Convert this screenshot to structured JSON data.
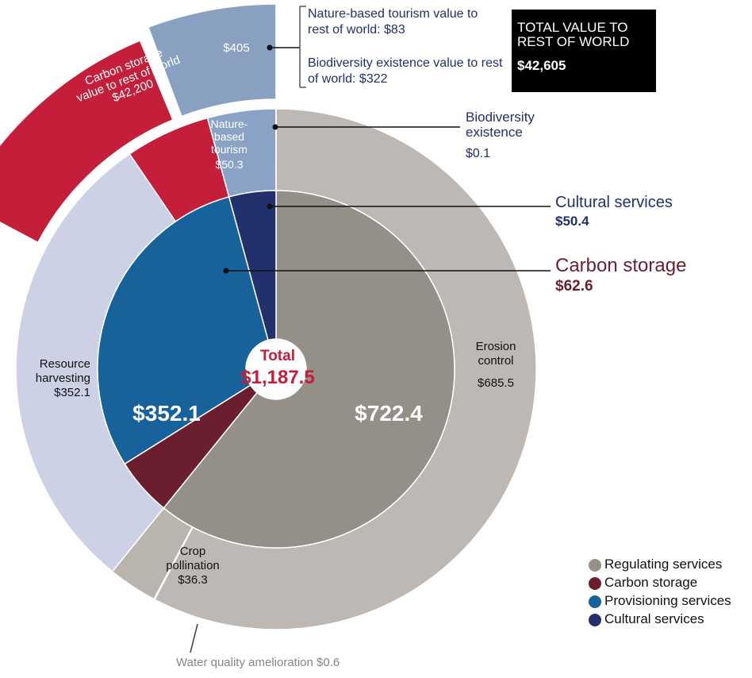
{
  "chart_data": {
    "type": "sunburst",
    "center_label": "Total",
    "total": 1187.5,
    "total_label": "$1,187.5",
    "inner": {
      "names": [
        "Regulating services",
        "Carbon storage",
        "Provisioning services",
        "Cultural services"
      ],
      "colors": [
        "#948f87",
        "#6b1f2e",
        "#17629a",
        "#22306b"
      ],
      "values": [
        722.4,
        62.6,
        352.1,
        50.4
      ],
      "value_labels": [
        "$722.4",
        "$62.6",
        "$352.1",
        "$50.4"
      ]
    },
    "outer": {
      "names": [
        "Erosion control",
        "Water quality amelioration",
        "Crop pollination",
        "Resource harvesting",
        null,
        "Nature-based tourism",
        "Biodiversity existence"
      ],
      "colors": [
        "#bdb8b3",
        "#dedad6",
        "#b9b4ae",
        "#cdd1e6",
        "#c41e3a",
        "#8aa2c6",
        "#c8d2e4"
      ],
      "values": [
        685.5,
        0.6,
        36.3,
        352.1,
        62.6,
        50.3,
        0.1
      ],
      "value_labels": [
        "$685.5",
        "$0.6",
        "$36.3",
        "$352.1",
        null,
        "$50.3",
        "$0.1"
      ]
    },
    "rest_of_world": {
      "names": [
        "Carbon storage value to rest of world",
        null
      ],
      "colors": [
        "#c41e3a",
        "#8aa0c0"
      ],
      "values": [
        42200,
        405
      ],
      "value_labels": [
        "$42,200",
        "$405"
      ],
      "breakdown": {
        "names": [
          "Nature-based tourism value to rest of world",
          "Biodiversity existence value to rest of world"
        ],
        "values": [
          83,
          322
        ],
        "value_labels": [
          "$83",
          "$322"
        ]
      },
      "total_title": "TOTAL VALUE TO REST OF WORLD",
      "total": 42605,
      "total_label": "$42,605"
    }
  }
}
